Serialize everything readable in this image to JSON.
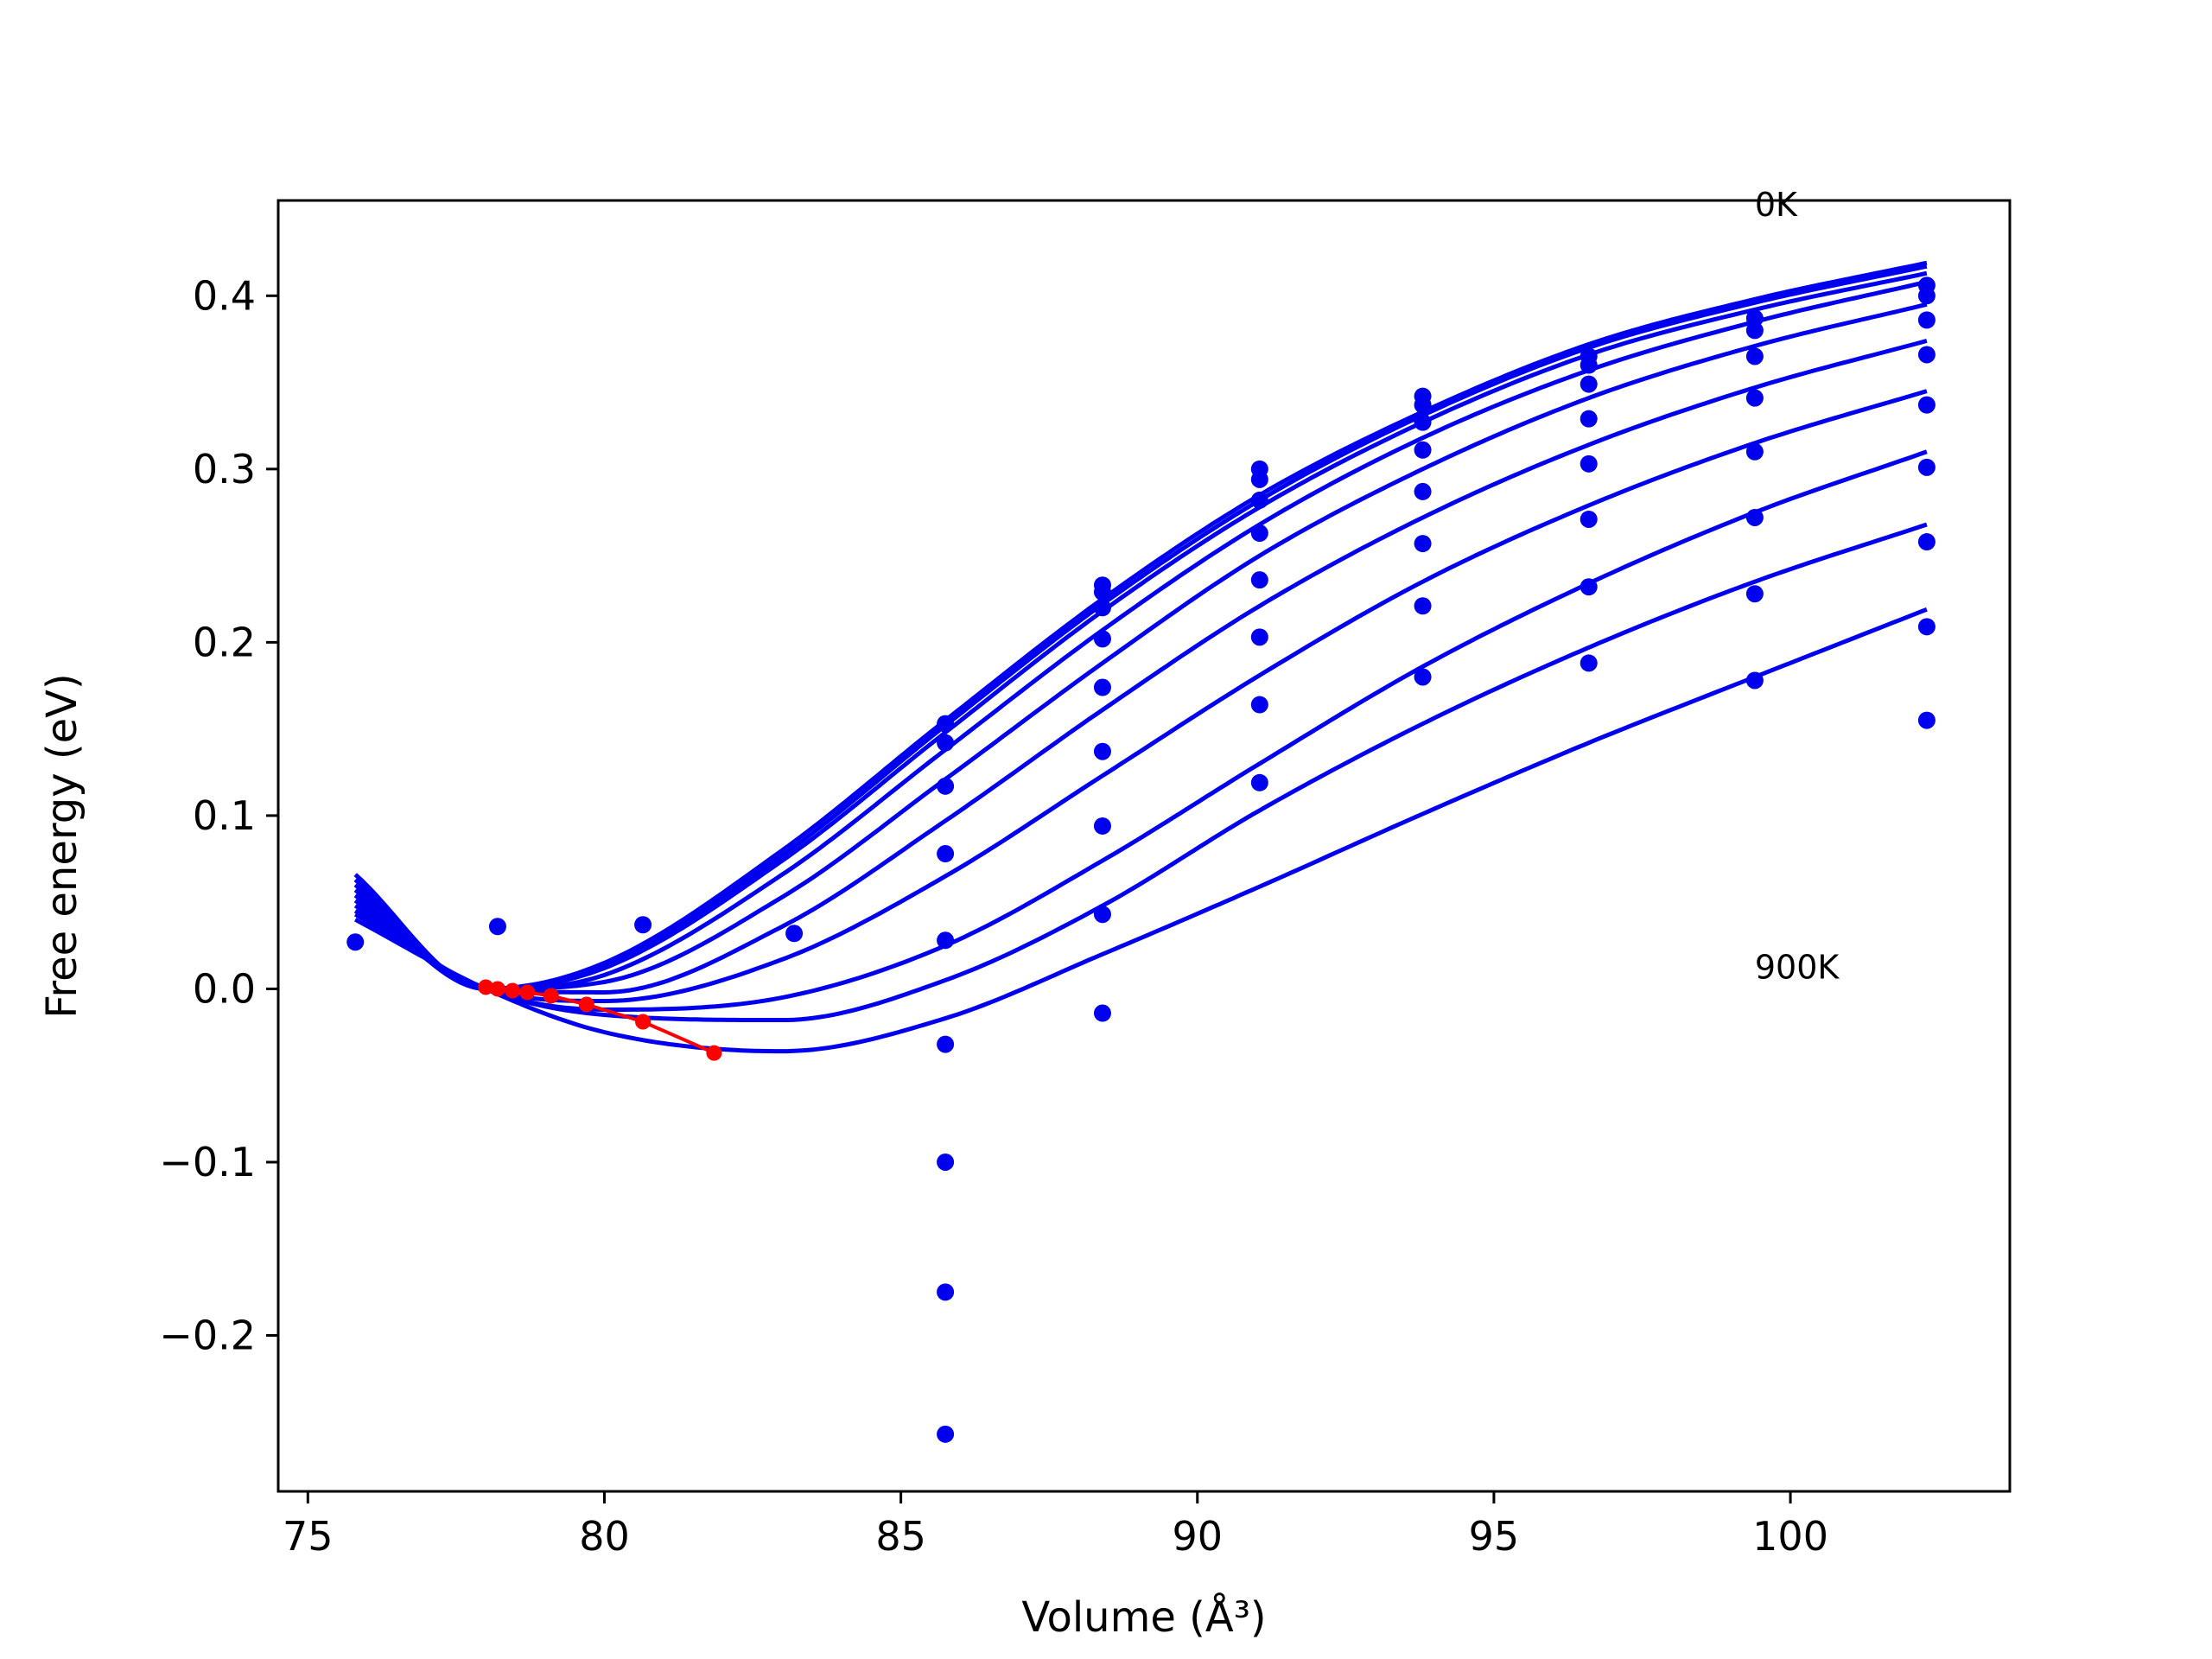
{
  "chart_data": {
    "type": "line",
    "xlabel": "Volume (Å³)",
    "ylabel": "Free energy (eV)",
    "xlim": [
      74.5,
      103.7
    ],
    "ylim": [
      -0.29,
      0.455
    ],
    "xticks": [
      75,
      80,
      85,
      90,
      95,
      100
    ],
    "xtick_labels": [
      "75",
      "80",
      "85",
      "90",
      "95",
      "100"
    ],
    "yticks": [
      -0.2,
      -0.1,
      0.0,
      0.1,
      0.2,
      0.3,
      0.4
    ],
    "ytick_labels": [
      "−0.2",
      "−0.1",
      "0.0",
      "0.1",
      "0.2",
      "0.3",
      "0.4"
    ],
    "annotations": [
      {
        "text": "0K",
        "x": 99.4,
        "y": 0.45
      },
      {
        "text": "900K",
        "x": 99.4,
        "y": 0.0
      }
    ],
    "colors": {
      "fit": "#0000ee",
      "points": "#0000ee",
      "minima": "#ff0000"
    },
    "fit_x_range": [
      75.8,
      102.3
    ],
    "fit_curves": [
      {
        "x": [
          75.8,
          78.0,
          80.0,
          83.0,
          85.75,
          88.4,
          91.05,
          93.8,
          96.6,
          99.4,
          102.3
        ],
        "y": [
          0.066,
          0.0,
          0.015,
          0.08,
          0.155,
          0.225,
          0.285,
          0.333,
          0.372,
          0.398,
          0.419
        ]
      },
      {
        "x": [
          75.8,
          78.0,
          80.0,
          83.0,
          85.75,
          88.4,
          91.05,
          93.8,
          96.6,
          99.4,
          102.3
        ],
        "y": [
          0.063,
          0.0,
          0.014,
          0.077,
          0.152,
          0.222,
          0.282,
          0.331,
          0.37,
          0.396,
          0.417
        ]
      },
      {
        "x": [
          75.8,
          78.0,
          80.0,
          83.0,
          85.75,
          88.4,
          91.05,
          93.8,
          96.6,
          99.4,
          102.3
        ],
        "y": [
          0.06,
          0.0,
          0.012,
          0.074,
          0.148,
          0.218,
          0.278,
          0.327,
          0.366,
          0.392,
          0.413
        ]
      },
      {
        "x": [
          75.8,
          78.0,
          80.0,
          83.0,
          85.75,
          88.4,
          91.05,
          93.8,
          96.6,
          99.4,
          102.3
        ],
        "y": [
          0.057,
          0.0,
          0.008,
          0.066,
          0.138,
          0.207,
          0.268,
          0.318,
          0.357,
          0.385,
          0.408
        ]
      },
      {
        "x": [
          75.8,
          78.0,
          80.0,
          83.0,
          85.75,
          88.4,
          91.05,
          93.8,
          96.6,
          99.4,
          102.3
        ],
        "y": [
          0.054,
          0.0,
          0.004,
          0.053,
          0.121,
          0.188,
          0.25,
          0.3,
          0.341,
          0.371,
          0.395
        ]
      },
      {
        "x": [
          75.8,
          78.0,
          80.0,
          83.0,
          85.75,
          88.4,
          91.05,
          93.8,
          96.6,
          99.4,
          102.3
        ],
        "y": [
          0.051,
          0.0,
          -0.002,
          0.036,
          0.097,
          0.161,
          0.221,
          0.272,
          0.314,
          0.347,
          0.374
        ]
      },
      {
        "x": [
          75.8,
          78.0,
          80.0,
          83.0,
          85.75,
          88.4,
          91.05,
          93.8,
          96.6,
          99.4,
          102.3
        ],
        "y": [
          0.048,
          0.0,
          -0.007,
          0.017,
          0.065,
          0.123,
          0.181,
          0.235,
          0.279,
          0.315,
          0.345
        ]
      },
      {
        "x": [
          75.8,
          78.0,
          80.0,
          83.0,
          85.75,
          88.4,
          91.05,
          93.8,
          96.6,
          99.4,
          102.3
        ],
        "y": [
          0.045,
          0.0,
          -0.012,
          -0.005,
          0.025,
          0.074,
          0.13,
          0.186,
          0.234,
          0.275,
          0.31
        ]
      },
      {
        "x": [
          75.8,
          78.0,
          80.0,
          83.0,
          85.75,
          88.4,
          91.05,
          93.8,
          96.6,
          99.4,
          102.3
        ],
        "y": [
          0.043,
          0.0,
          -0.015,
          -0.018,
          0.005,
          0.048,
          0.103,
          0.153,
          0.197,
          0.235,
          0.268
        ]
      },
      {
        "x": [
          75.8,
          78.0,
          80.0,
          83.0,
          85.75,
          88.4,
          91.05,
          93.8,
          96.6,
          99.4,
          102.3
        ],
        "y": [
          0.04,
          0.0,
          -0.025,
          -0.036,
          -0.017,
          0.02,
          0.059,
          0.101,
          0.142,
          0.18,
          0.219
        ]
      }
    ],
    "points": [
      {
        "x": 75.8,
        "y": 0.027
      },
      {
        "x": 78.2,
        "y": 0.036
      },
      {
        "x": 80.65,
        "y": 0.037
      },
      {
        "x": 83.2,
        "y": 0.032
      },
      {
        "x": 85.75,
        "y": 0.153
      },
      {
        "x": 85.75,
        "y": 0.142
      },
      {
        "x": 85.75,
        "y": 0.117
      },
      {
        "x": 85.75,
        "y": 0.078
      },
      {
        "x": 85.75,
        "y": 0.028
      },
      {
        "x": 85.75,
        "y": -0.032
      },
      {
        "x": 85.75,
        "y": -0.1
      },
      {
        "x": 85.75,
        "y": -0.175
      },
      {
        "x": 85.75,
        "y": -0.257
      },
      {
        "x": 88.4,
        "y": 0.233
      },
      {
        "x": 88.4,
        "y": 0.229
      },
      {
        "x": 88.4,
        "y": 0.22
      },
      {
        "x": 88.4,
        "y": 0.202
      },
      {
        "x": 88.4,
        "y": 0.174
      },
      {
        "x": 88.4,
        "y": 0.137
      },
      {
        "x": 88.4,
        "y": 0.094
      },
      {
        "x": 88.4,
        "y": 0.043
      },
      {
        "x": 88.4,
        "y": -0.014
      },
      {
        "x": 91.05,
        "y": 0.3
      },
      {
        "x": 91.05,
        "y": 0.294
      },
      {
        "x": 91.05,
        "y": 0.282
      },
      {
        "x": 91.05,
        "y": 0.263
      },
      {
        "x": 91.05,
        "y": 0.236
      },
      {
        "x": 91.05,
        "y": 0.203
      },
      {
        "x": 91.05,
        "y": 0.164
      },
      {
        "x": 91.05,
        "y": 0.119
      },
      {
        "x": 93.8,
        "y": 0.342
      },
      {
        "x": 93.8,
        "y": 0.337
      },
      {
        "x": 93.8,
        "y": 0.327
      },
      {
        "x": 93.8,
        "y": 0.311
      },
      {
        "x": 93.8,
        "y": 0.287
      },
      {
        "x": 93.8,
        "y": 0.257
      },
      {
        "x": 93.8,
        "y": 0.221
      },
      {
        "x": 93.8,
        "y": 0.18
      },
      {
        "x": 96.6,
        "y": 0.365
      },
      {
        "x": 96.6,
        "y": 0.36
      },
      {
        "x": 96.6,
        "y": 0.349
      },
      {
        "x": 96.6,
        "y": 0.329
      },
      {
        "x": 96.6,
        "y": 0.303
      },
      {
        "x": 96.6,
        "y": 0.271
      },
      {
        "x": 96.6,
        "y": 0.232
      },
      {
        "x": 96.6,
        "y": 0.188
      },
      {
        "x": 99.4,
        "y": 0.387
      },
      {
        "x": 99.4,
        "y": 0.38
      },
      {
        "x": 99.4,
        "y": 0.365
      },
      {
        "x": 99.4,
        "y": 0.341
      },
      {
        "x": 99.4,
        "y": 0.31
      },
      {
        "x": 99.4,
        "y": 0.272
      },
      {
        "x": 99.4,
        "y": 0.228
      },
      {
        "x": 99.4,
        "y": 0.178
      },
      {
        "x": 102.3,
        "y": 0.406
      },
      {
        "x": 102.3,
        "y": 0.4
      },
      {
        "x": 102.3,
        "y": 0.386
      },
      {
        "x": 102.3,
        "y": 0.366
      },
      {
        "x": 102.3,
        "y": 0.337
      },
      {
        "x": 102.3,
        "y": 0.301
      },
      {
        "x": 102.3,
        "y": 0.258
      },
      {
        "x": 102.3,
        "y": 0.209
      },
      {
        "x": 102.3,
        "y": 0.155
      }
    ],
    "minima": {
      "x": [
        78.0,
        78.2,
        78.45,
        78.7,
        79.1,
        79.7,
        80.65,
        81.85
      ],
      "y": [
        0.001,
        0.0,
        -0.001,
        -0.002,
        -0.004,
        -0.009,
        -0.019,
        -0.037
      ]
    }
  }
}
